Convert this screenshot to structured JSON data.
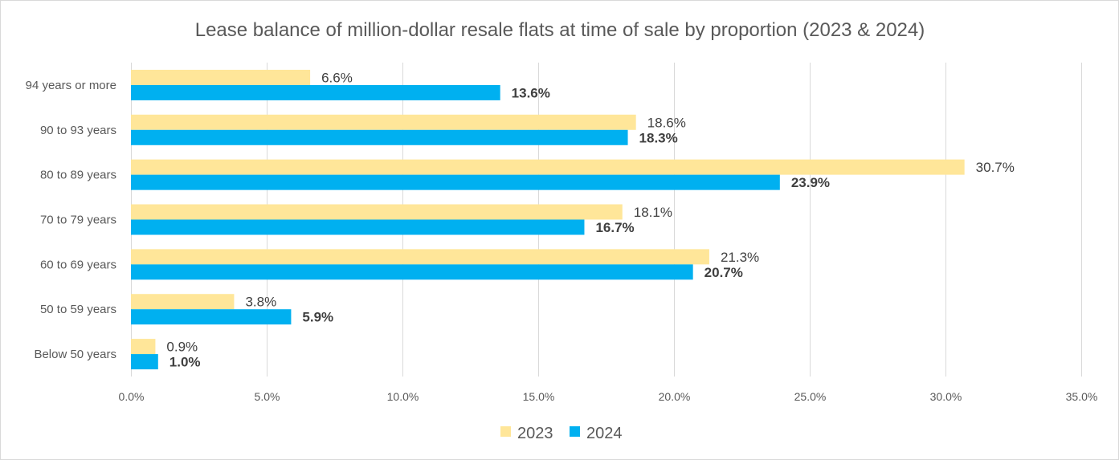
{
  "chart_data": {
    "type": "bar",
    "orientation": "horizontal",
    "title": "Lease balance of million-dollar resale flats at time of sale by proportion (2023 & 2024)",
    "categories": [
      "94 years or more",
      "90 to 93 years",
      "80 to 89 years",
      "70 to 79 years",
      "60 to 69 years",
      "50 to 59 years",
      "Below 50 years"
    ],
    "series": [
      {
        "name": "2023",
        "color": "#FFE699",
        "values": [
          6.6,
          18.6,
          30.7,
          18.1,
          21.3,
          3.8,
          0.9
        ],
        "labels": [
          "6.6%",
          "18.6%",
          "30.7%",
          "18.1%",
          "21.3%",
          "3.8%",
          "0.9%"
        ]
      },
      {
        "name": "2024",
        "color": "#00B0F0",
        "values": [
          13.6,
          18.3,
          23.9,
          16.7,
          20.7,
          5.9,
          1.0
        ],
        "labels": [
          "13.6%",
          "18.3%",
          "23.9%",
          "16.7%",
          "20.7%",
          "5.9%",
          "1.0%"
        ]
      }
    ],
    "xlim": [
      0,
      35
    ],
    "xticks": [
      0,
      5,
      10,
      15,
      20,
      25,
      30,
      35
    ],
    "xtick_labels": [
      "0.0%",
      "5.0%",
      "10.0%",
      "15.0%",
      "20.0%",
      "25.0%",
      "30.0%",
      "35.0%"
    ],
    "grid": true,
    "legend_position": "bottom"
  }
}
